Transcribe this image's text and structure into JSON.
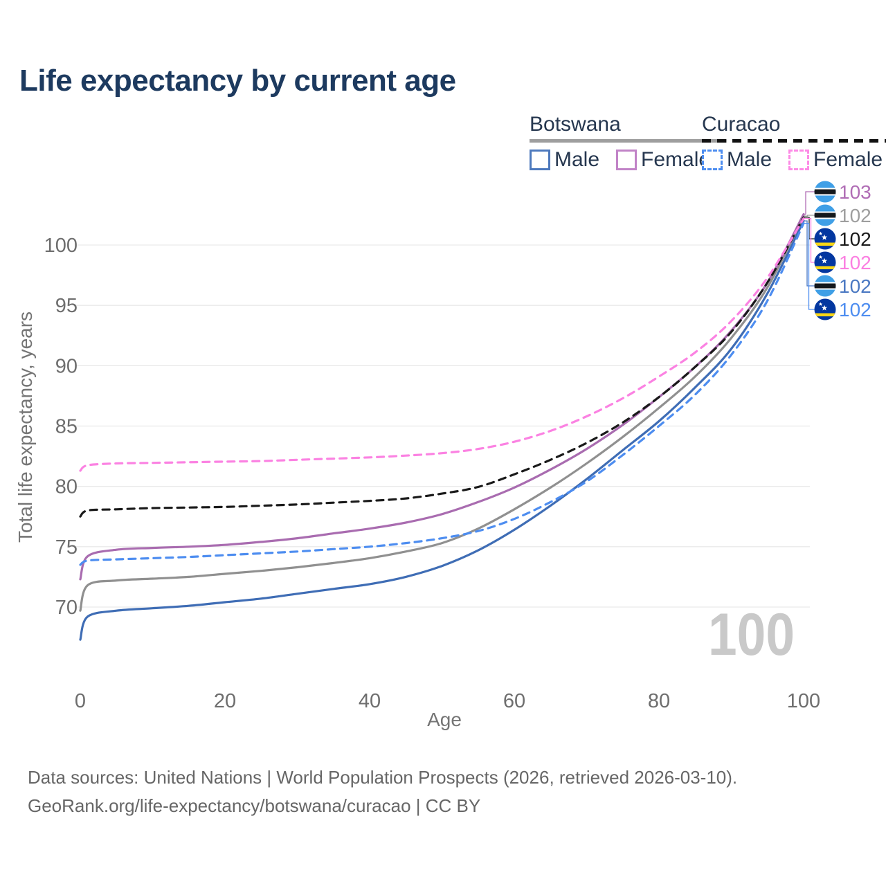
{
  "title": "Life expectancy by current age",
  "legend": {
    "groups": [
      {
        "country": "Botswana",
        "line_style": "solid",
        "underline_color": "#9e9e9e",
        "items": [
          {
            "label": "Male",
            "color": "#3f6db5",
            "dashed": false
          },
          {
            "label": "Female",
            "color": "#a96cb0",
            "dashed": false
          }
        ]
      },
      {
        "country": "Curacao",
        "line_style": "dashed",
        "underline_color": "#111111",
        "items": [
          {
            "label": "Male",
            "color": "#4d8df0",
            "dashed": true
          },
          {
            "label": "Female",
            "color": "#fb82e2",
            "dashed": true
          }
        ]
      }
    ]
  },
  "chart_data": {
    "type": "line",
    "title": "Life expectancy by current age",
    "xlabel": "Age",
    "ylabel": "Total life expectancy, years",
    "xlim": [
      0,
      100
    ],
    "ylim": [
      66,
      104
    ],
    "xticks": [
      0,
      20,
      40,
      60,
      80,
      100
    ],
    "yticks": [
      70,
      75,
      80,
      85,
      90,
      95,
      100
    ],
    "grid": true,
    "legend_position": "top-right",
    "watermark_age": "100",
    "x": [
      0,
      1,
      5,
      10,
      15,
      20,
      25,
      30,
      35,
      40,
      45,
      50,
      55,
      60,
      65,
      70,
      75,
      80,
      85,
      90,
      95,
      100
    ],
    "series": [
      {
        "name": "Botswana Male",
        "country": "Botswana",
        "sex": "Male",
        "color": "#3f6db5",
        "dash": "solid",
        "values": [
          67.3,
          69.2,
          69.7,
          69.9,
          70.1,
          70.4,
          70.7,
          71.1,
          71.5,
          71.9,
          72.5,
          73.4,
          74.7,
          76.4,
          78.4,
          80.6,
          83.0,
          85.4,
          88.2,
          91.4,
          96.0,
          102.0
        ]
      },
      {
        "name": "Botswana Female",
        "country": "Botswana",
        "sex": "Female",
        "color": "#a96cb0",
        "dash": "solid",
        "values": [
          72.3,
          74.2,
          74.75,
          74.9,
          75.0,
          75.15,
          75.4,
          75.7,
          76.1,
          76.5,
          77.0,
          77.7,
          78.7,
          79.9,
          81.4,
          83.1,
          85.1,
          87.4,
          89.9,
          92.9,
          96.9,
          102.55
        ]
      },
      {
        "name": "Botswana Both sexes",
        "country": "Botswana",
        "sex": "Both",
        "color": "#909090",
        "dash": "solid",
        "values": [
          69.7,
          71.8,
          72.2,
          72.35,
          72.5,
          72.75,
          73.0,
          73.3,
          73.65,
          74.05,
          74.6,
          75.3,
          76.5,
          78.1,
          79.9,
          81.9,
          84.1,
          86.5,
          89.1,
          92.3,
          96.5,
          102.4
        ]
      },
      {
        "name": "Curacao Both sexes",
        "country": "Curacao",
        "sex": "Both",
        "color": "#1a1a1a",
        "dash": "dashed",
        "values": [
          77.5,
          78.0,
          78.1,
          78.2,
          78.25,
          78.3,
          78.4,
          78.5,
          78.65,
          78.8,
          79.0,
          79.4,
          79.95,
          81.0,
          82.2,
          83.6,
          85.3,
          87.4,
          89.9,
          92.8,
          96.9,
          102.3
        ]
      },
      {
        "name": "Curacao Male",
        "country": "Curacao",
        "sex": "Male",
        "color": "#4d8df0",
        "dash": "dashed",
        "values": [
          73.5,
          73.85,
          73.95,
          74.05,
          74.15,
          74.3,
          74.45,
          74.6,
          74.8,
          75.0,
          75.3,
          75.7,
          76.3,
          77.3,
          78.7,
          80.4,
          82.6,
          85.0,
          87.6,
          90.9,
          95.4,
          101.8
        ]
      },
      {
        "name": "Curacao Female",
        "country": "Curacao",
        "sex": "Female",
        "color": "#fb82e2",
        "dash": "dashed",
        "values": [
          81.3,
          81.75,
          81.9,
          81.95,
          82.0,
          82.05,
          82.1,
          82.2,
          82.3,
          82.4,
          82.55,
          82.75,
          83.1,
          83.7,
          84.6,
          85.8,
          87.3,
          89.1,
          91.1,
          93.7,
          97.3,
          102.2
        ]
      }
    ],
    "end_labels": [
      {
        "series": "Botswana Female",
        "flag": "botswana",
        "value": "103",
        "color": "#b06db5"
      },
      {
        "series": "Botswana Both sexes",
        "flag": "botswana",
        "value": "102",
        "color": "#9e9e9e"
      },
      {
        "series": "Curacao Both sexes",
        "flag": "curacao",
        "value": "102",
        "color": "#1a1a1a"
      },
      {
        "series": "Curacao Female",
        "flag": "curacao",
        "value": "102",
        "color": "#fb7fe1"
      },
      {
        "series": "Botswana Male",
        "flag": "botswana",
        "value": "102",
        "color": "#4a78c2"
      },
      {
        "series": "Curacao Male",
        "flag": "curacao",
        "value": "102",
        "color": "#4d8df0"
      }
    ],
    "flag_colors": {
      "botswana": {
        "blue": "#3f9fe6",
        "black": "#14181c",
        "white": "#ffffff"
      },
      "curacao": {
        "blue": "#0337a0",
        "yellow": "#f9d616",
        "white": "#ffffff"
      }
    }
  },
  "footer": {
    "line1": "Data sources: United Nations | World Population Prospects (2026, retrieved 2026-03-10).",
    "line2": "GeoRank.org/life-expectancy/botswana/curacao | CC BY"
  }
}
